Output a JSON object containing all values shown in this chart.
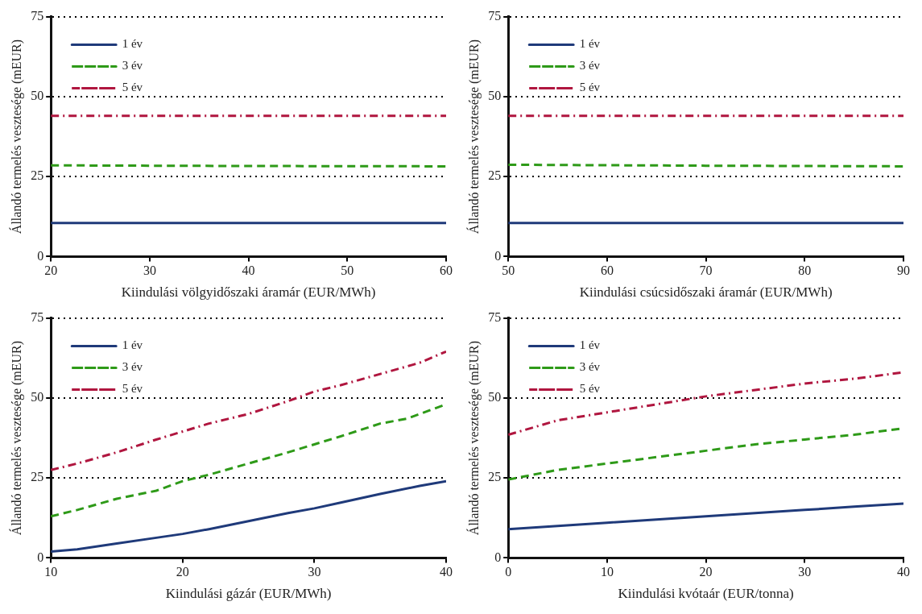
{
  "chart_data": [
    {
      "type": "line",
      "xlabel": "Kiindulási völgyidőszaki áramár (EUR/MWh)",
      "ylabel": "Állandó termelés vesztesége (mEUR)",
      "xlim": [
        20,
        60
      ],
      "xticks": [
        20,
        30,
        40,
        50,
        60
      ],
      "ylim": [
        0,
        75
      ],
      "yticks": [
        0,
        25,
        50,
        75
      ],
      "grid": "y",
      "legend": "top left",
      "series": [
        {
          "name": "1 év",
          "color": "#1f3a7a",
          "line_style": "solid",
          "x": [
            20,
            60
          ],
          "values": [
            10.5,
            10.5
          ]
        },
        {
          "name": "3 év",
          "color": "#2e9a18",
          "line_style": "dashed",
          "x": [
            20,
            40,
            60
          ],
          "values": [
            28.5,
            28.3,
            28.2
          ]
        },
        {
          "name": "5 év",
          "color": "#b0163f",
          "line_style": "dashdot",
          "x": [
            20,
            60
          ],
          "values": [
            44,
            44
          ]
        }
      ]
    },
    {
      "type": "line",
      "xlabel": "Kiindulási csúcsidőszaki áramár (EUR/MWh)",
      "ylabel": "Állandó termelés vesztesége (mEUR)",
      "xlim": [
        50,
        90
      ],
      "xticks": [
        50,
        60,
        70,
        80,
        90
      ],
      "ylim": [
        0,
        75
      ],
      "yticks": [
        0,
        25,
        50,
        75
      ],
      "grid": "y",
      "legend": "top left",
      "series": [
        {
          "name": "1 év",
          "color": "#1f3a7a",
          "line_style": "solid",
          "x": [
            50,
            90
          ],
          "values": [
            10.5,
            10.5
          ]
        },
        {
          "name": "3 év",
          "color": "#2e9a18",
          "line_style": "dashed",
          "x": [
            50,
            70,
            90
          ],
          "values": [
            28.7,
            28.4,
            28.2
          ]
        },
        {
          "name": "5 év",
          "color": "#b0163f",
          "line_style": "dashdot",
          "x": [
            50,
            90
          ],
          "values": [
            44,
            44
          ]
        }
      ]
    },
    {
      "type": "line",
      "xlabel": "Kiindulási gázár (EUR/MWh)",
      "ylabel": "Állandó termelés vesztesége (mEUR)",
      "xlim": [
        10,
        40
      ],
      "xticks": [
        10,
        20,
        30,
        40
      ],
      "ylim": [
        0,
        75
      ],
      "yticks": [
        0,
        25,
        50,
        75
      ],
      "grid": "y",
      "legend": "top left",
      "series": [
        {
          "name": "1 év",
          "color": "#1f3a7a",
          "line_style": "solid",
          "x": [
            10,
            12,
            15,
            18,
            20,
            22,
            25,
            28,
            30,
            32,
            35,
            38,
            40
          ],
          "values": [
            2,
            2.7,
            4.5,
            6.3,
            7.5,
            9,
            11.5,
            14,
            15.5,
            17.3,
            20,
            22.5,
            24
          ]
        },
        {
          "name": "3 év",
          "color": "#2e9a18",
          "line_style": "dashed",
          "x": [
            10,
            12,
            15,
            18,
            20,
            22,
            25,
            28,
            30,
            32,
            35,
            37,
            40
          ],
          "values": [
            13,
            15,
            18.5,
            21,
            24,
            26,
            29.5,
            33,
            35.5,
            38,
            42,
            43.5,
            48
          ]
        },
        {
          "name": "5 év",
          "color": "#b0163f",
          "line_style": "dashdot",
          "x": [
            10,
            12,
            15,
            18,
            20,
            22,
            25,
            28,
            30,
            32,
            35,
            38,
            40
          ],
          "values": [
            27.5,
            29.5,
            33,
            37,
            39.5,
            42,
            45,
            49,
            52,
            54,
            57.5,
            61,
            64.5
          ]
        }
      ]
    },
    {
      "type": "line",
      "xlabel": "Kiindulási kvótaár (EUR/tonna)",
      "ylabel": "Állandó termelés vesztesége (mEUR)",
      "xlim": [
        0,
        40
      ],
      "xticks": [
        0,
        10,
        20,
        30,
        40
      ],
      "ylim": [
        0,
        75
      ],
      "yticks": [
        0,
        25,
        50,
        75
      ],
      "grid": "y",
      "legend": "top left",
      "series": [
        {
          "name": "1 év",
          "color": "#1f3a7a",
          "line_style": "solid",
          "x": [
            0,
            5,
            10,
            15,
            20,
            25,
            30,
            35,
            40
          ],
          "values": [
            9,
            10,
            11,
            12,
            13,
            14,
            15,
            16,
            17
          ]
        },
        {
          "name": "3 év",
          "color": "#2e9a18",
          "line_style": "dashed",
          "x": [
            0,
            5,
            10,
            15,
            20,
            25,
            30,
            35,
            40
          ],
          "values": [
            24.5,
            27.5,
            29.5,
            31.5,
            33.5,
            35.5,
            37,
            38.5,
            40.5
          ]
        },
        {
          "name": "5 év",
          "color": "#b0163f",
          "line_style": "dashdot",
          "x": [
            0,
            5,
            10,
            15,
            20,
            25,
            30,
            35,
            40
          ],
          "values": [
            38.5,
            43,
            45.5,
            48,
            50.5,
            52.5,
            54.5,
            56,
            58
          ]
        }
      ]
    }
  ]
}
